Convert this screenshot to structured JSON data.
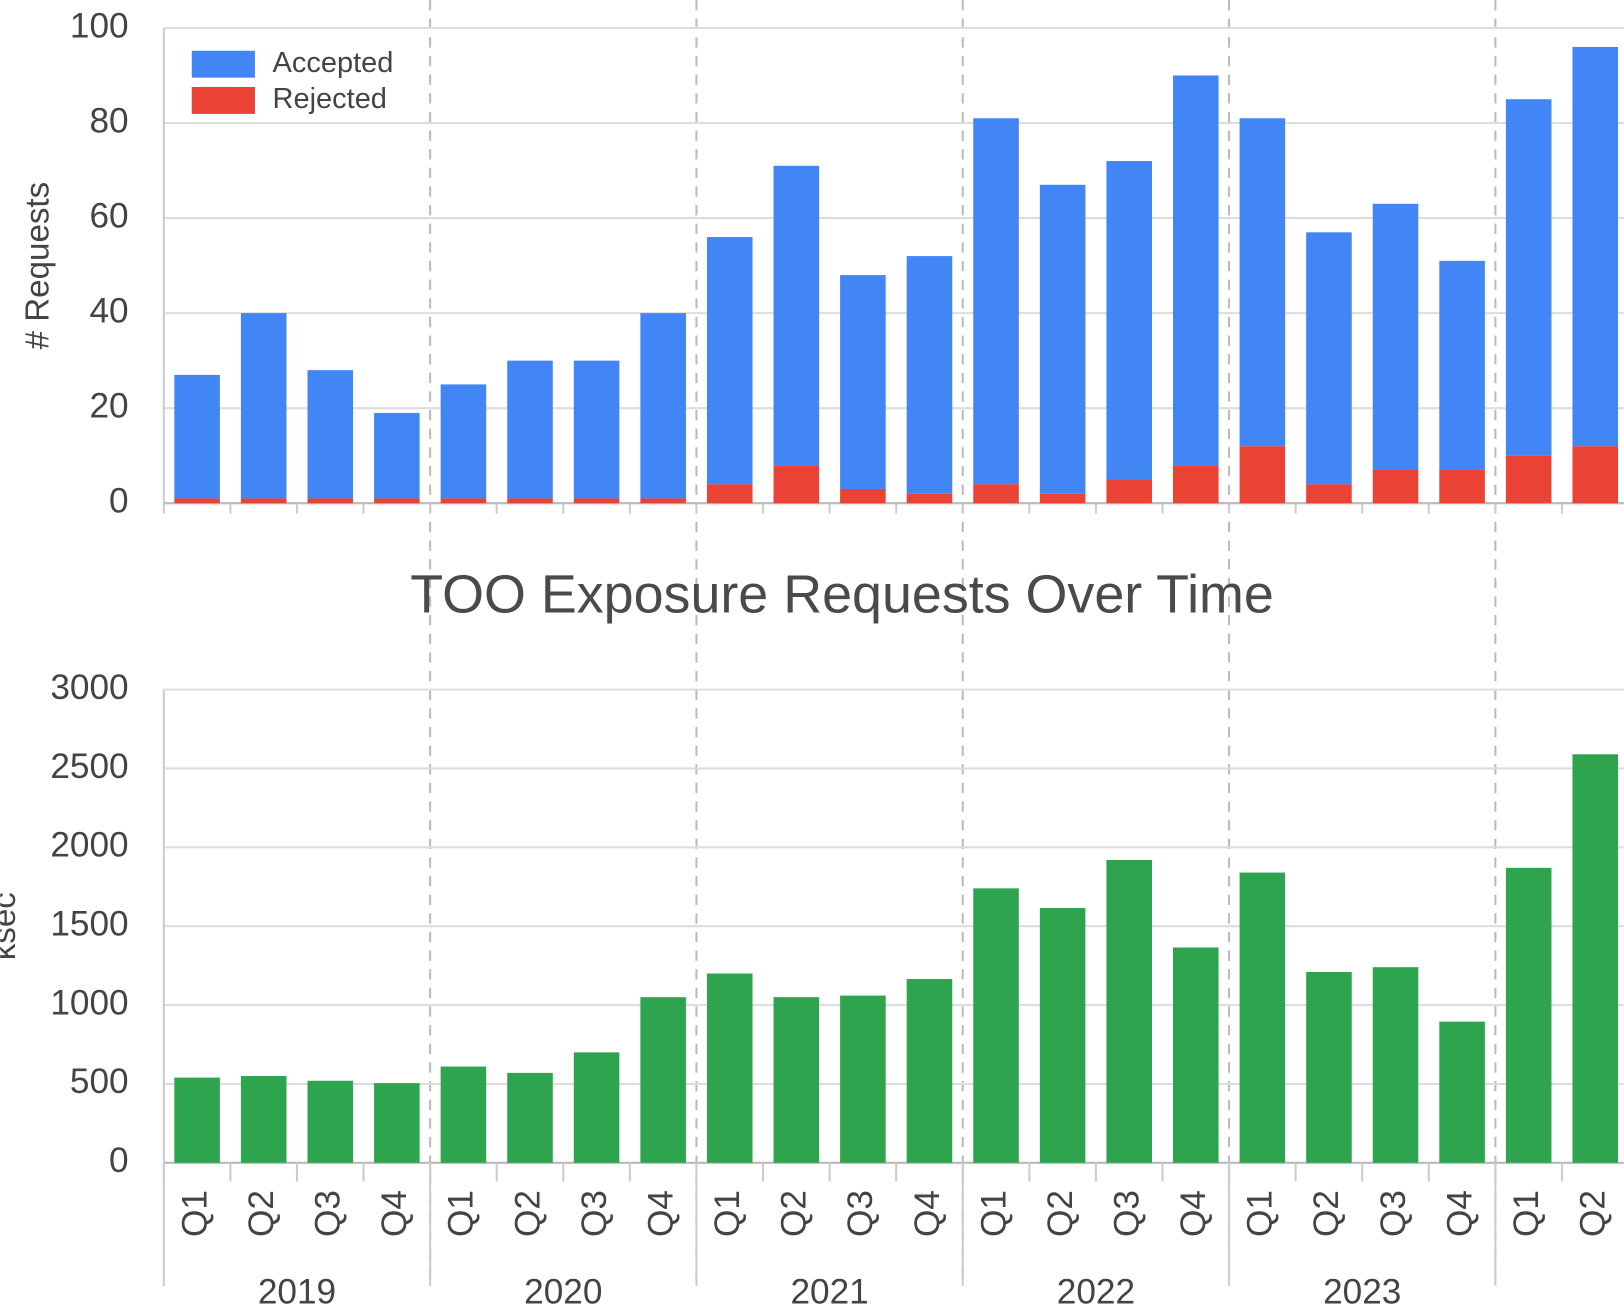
{
  "chart_data": [
    {
      "type": "stacked_bar",
      "ylabel": "# Requests",
      "series": [
        {
          "name": "Accepted",
          "color": "#4285f4",
          "values": [
            26,
            39,
            27,
            18,
            24,
            29,
            29,
            39,
            52,
            63,
            45,
            50,
            77,
            65,
            67,
            82,
            69,
            53,
            56,
            44,
            75,
            84
          ]
        },
        {
          "name": "Rejected",
          "color": "#ea4335",
          "values": [
            1,
            1,
            1,
            1,
            1,
            1,
            1,
            1,
            4,
            8,
            3,
            2,
            4,
            2,
            5,
            8,
            12,
            4,
            7,
            7,
            10,
            12
          ]
        }
      ],
      "ylim": [
        0,
        100
      ],
      "yticks": [
        0,
        20,
        40,
        60,
        80,
        100
      ],
      "grid": true,
      "legend": "top-left"
    },
    {
      "type": "bar",
      "title": "TOO Exposure Requests Over Time",
      "ylabel": "ksec",
      "categories": [
        "Q1",
        "Q2",
        "Q3",
        "Q4",
        "Q1",
        "Q2",
        "Q3",
        "Q4",
        "Q1",
        "Q2",
        "Q3",
        "Q4",
        "Q1",
        "Q2",
        "Q3",
        "Q4",
        "Q1",
        "Q2",
        "Q3",
        "Q4",
        "Q1",
        "Q2"
      ],
      "year_groups": [
        "2019",
        "2020",
        "2021",
        "2022",
        "2023"
      ],
      "values": [
        540,
        550,
        520,
        505,
        610,
        570,
        700,
        1050,
        1200,
        1050,
        1060,
        1165,
        1740,
        1615,
        1920,
        1365,
        1840,
        1210,
        1240,
        895,
        1870,
        2590
      ],
      "color": "#2ea44f",
      "ylim": [
        0,
        3000
      ],
      "yticks": [
        0,
        500,
        1000,
        1500,
        2000,
        2500,
        3000
      ],
      "grid": true
    }
  ]
}
